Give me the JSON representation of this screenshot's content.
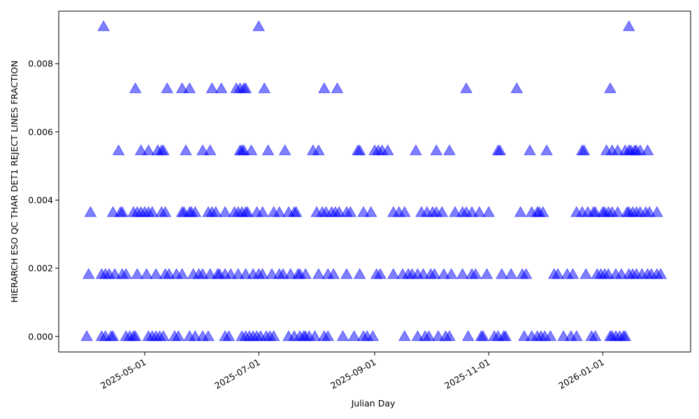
{
  "chart_data": {
    "type": "scatter",
    "x_label": "Julian Day",
    "y_label": "HIERARCH ESO QC THAR DET1 REJECT LINES FRACTION",
    "color": "#0000ff",
    "alpha": 0.5,
    "marker": "triangle",
    "xlim": [
      "2025-03-16",
      "2026-02-17"
    ],
    "xticks": [
      "2025-05-01",
      "2025-07-01",
      "2025-09-01",
      "2025-11-01",
      "2026-01-01"
    ],
    "ylim": [
      -0.000455,
      0.00954
    ],
    "yticks": [
      {
        "value": 0,
        "label": "0.000"
      },
      {
        "value": 0.002,
        "label": "0.002"
      },
      {
        "value": 0.004,
        "label": "0.004"
      },
      {
        "value": 0.006,
        "label": "0.006"
      },
      {
        "value": 0.008,
        "label": "0.008"
      }
    ],
    "x": [
      "2025-03-31",
      "2025-04-08",
      "2025-04-10",
      "2025-04-13",
      "2025-04-14",
      "2025-04-21",
      "2025-04-23",
      "2025-04-25",
      "2025-04-26",
      "2025-05-03",
      "2025-05-05",
      "2025-05-07",
      "2025-05-09",
      "2025-05-11",
      "2025-05-17",
      "2025-05-19",
      "2025-05-25",
      "2025-05-28",
      "2025-06-01",
      "2025-06-04",
      "2025-06-13",
      "2025-06-15",
      "2025-06-22",
      "2025-06-24",
      "2025-06-26",
      "2025-06-28",
      "2025-06-30",
      "2025-07-02",
      "2025-07-05",
      "2025-07-07",
      "2025-07-09",
      "2025-07-17",
      "2025-07-20",
      "2025-07-23",
      "2025-07-25",
      "2025-07-26",
      "2025-07-28",
      "2025-07-31",
      "2025-08-05",
      "2025-08-07",
      "2025-08-15",
      "2025-08-21",
      "2025-08-26",
      "2025-08-28",
      "2025-08-31",
      "2025-09-17",
      "2025-09-24",
      "2025-09-28",
      "2025-09-30",
      "2025-10-05",
      "2025-10-09",
      "2025-10-11",
      "2025-10-21",
      "2025-10-28",
      "2025-10-29",
      "2025-11-04",
      "2025-11-06",
      "2025-11-09",
      "2025-11-10",
      "2025-11-20",
      "2025-11-24",
      "2025-11-27",
      "2025-11-29",
      "2025-12-01",
      "2025-12-04",
      "2025-12-11",
      "2025-12-15",
      "2025-12-18",
      "2025-12-26",
      "2025-12-28",
      "2026-01-05",
      "2026-01-06",
      "2026-01-08",
      "2026-01-10",
      "2026-01-12",
      "2026-01-13",
      "2025-04-01",
      "2025-04-08",
      "2025-04-10",
      "2025-04-12",
      "2025-04-15",
      "2025-04-19",
      "2025-04-21",
      "2025-04-27",
      "2025-05-02",
      "2025-05-07",
      "2025-05-12",
      "2025-05-14",
      "2025-05-18",
      "2025-05-21",
      "2025-05-27",
      "2025-05-30",
      "2025-06-01",
      "2025-06-05",
      "2025-06-09",
      "2025-06-10",
      "2025-06-13",
      "2025-06-16",
      "2025-06-20",
      "2025-06-24",
      "2025-06-28",
      "2025-07-01",
      "2025-07-03",
      "2025-07-08",
      "2025-07-12",
      "2025-07-14",
      "2025-07-18",
      "2025-07-22",
      "2025-07-23",
      "2025-07-26",
      "2025-08-02",
      "2025-08-07",
      "2025-08-10",
      "2025-08-17",
      "2025-08-24",
      "2025-09-02",
      "2025-09-04",
      "2025-09-11",
      "2025-09-16",
      "2025-09-19",
      "2025-09-21",
      "2025-09-24",
      "2025-09-27",
      "2025-10-01",
      "2025-10-03",
      "2025-10-08",
      "2025-10-12",
      "2025-10-18",
      "2025-10-23",
      "2025-10-25",
      "2025-10-31",
      "2025-11-08",
      "2025-11-13",
      "2025-11-19",
      "2025-11-21",
      "2025-12-06",
      "2025-12-08",
      "2025-12-13",
      "2025-12-16",
      "2025-12-23",
      "2025-12-29",
      "2025-12-31",
      "2026-01-02",
      "2026-01-04",
      "2026-01-08",
      "2026-01-11",
      "2026-01-15",
      "2026-01-17",
      "2026-01-19",
      "2026-01-22",
      "2026-01-25",
      "2026-01-27",
      "2026-01-30",
      "2026-02-01",
      "2025-04-02",
      "2025-04-14",
      "2025-04-18",
      "2025-04-19",
      "2025-04-25",
      "2025-04-27",
      "2025-04-29",
      "2025-05-01",
      "2025-05-03",
      "2025-05-05",
      "2025-05-10",
      "2025-05-12",
      "2025-05-21",
      "2025-05-22",
      "2025-05-25",
      "2025-05-26",
      "2025-05-28",
      "2025-06-04",
      "2025-06-06",
      "2025-06-08",
      "2025-06-13",
      "2025-06-18",
      "2025-06-20",
      "2025-06-22",
      "2025-06-24",
      "2025-06-25",
      "2025-06-30",
      "2025-07-03",
      "2025-07-09",
      "2025-07-12",
      "2025-07-17",
      "2025-07-20",
      "2025-07-21",
      "2025-08-01",
      "2025-08-04",
      "2025-08-06",
      "2025-08-09",
      "2025-08-11",
      "2025-08-13",
      "2025-08-17",
      "2025-08-19",
      "2025-08-26",
      "2025-08-30",
      "2025-09-11",
      "2025-09-14",
      "2025-09-17",
      "2025-09-26",
      "2025-09-29",
      "2025-10-02",
      "2025-10-04",
      "2025-10-07",
      "2025-10-14",
      "2025-10-18",
      "2025-10-20",
      "2025-10-23",
      "2025-10-27",
      "2025-11-01",
      "2025-11-18",
      "2025-11-24",
      "2025-11-27",
      "2025-11-28",
      "2025-11-30",
      "2025-12-18",
      "2025-12-21",
      "2025-12-24",
      "2025-12-27",
      "2025-12-28",
      "2026-01-01",
      "2026-01-02",
      "2026-01-04",
      "2026-01-06",
      "2026-01-09",
      "2026-01-14",
      "2026-01-15",
      "2026-01-17",
      "2026-01-19",
      "2026-01-21",
      "2026-01-24",
      "2026-01-26",
      "2026-01-30",
      "2025-04-17",
      "2025-04-29",
      "2025-05-03",
      "2025-05-08",
      "2025-05-10",
      "2025-05-11",
      "2025-05-23",
      "2025-06-01",
      "2025-06-05",
      "2025-06-21",
      "2025-06-22",
      "2025-06-23",
      "2025-06-27",
      "2025-07-06",
      "2025-07-15",
      "2025-07-30",
      "2025-08-02",
      "2025-08-23",
      "2025-08-24",
      "2025-09-01",
      "2025-09-03",
      "2025-09-05",
      "2025-09-08",
      "2025-09-23",
      "2025-10-04",
      "2025-10-11",
      "2025-11-06",
      "2025-11-07",
      "2025-11-23",
      "2025-12-02",
      "2025-12-21",
      "2025-12-22",
      "2026-01-03",
      "2026-01-06",
      "2026-01-09",
      "2026-01-13",
      "2026-01-15",
      "2026-01-16",
      "2026-01-18",
      "2026-01-19",
      "2026-01-21",
      "2026-01-25",
      "2025-04-26",
      "2025-05-13",
      "2025-05-21",
      "2025-05-25",
      "2025-06-06",
      "2025-06-11",
      "2025-06-19",
      "2025-06-21",
      "2025-06-23",
      "2025-06-24",
      "2025-07-04",
      "2025-08-05",
      "2025-08-12",
      "2025-10-20",
      "2025-11-16",
      "2026-01-05",
      "2025-04-09",
      "2025-07-01",
      "2026-01-15"
    ],
    "values": [
      0,
      0,
      0,
      0,
      0,
      0,
      0,
      0,
      0,
      0,
      0,
      0,
      0,
      0,
      0,
      0,
      0,
      0,
      0,
      0,
      0,
      0,
      0,
      0,
      0,
      0,
      0,
      0,
      0,
      0,
      0,
      0,
      0,
      0,
      0,
      0,
      0,
      0,
      0,
      0,
      0,
      0,
      0,
      0,
      0,
      0,
      0,
      0,
      0,
      0,
      0,
      0,
      0,
      0,
      0,
      0,
      0,
      0,
      0,
      0,
      0,
      0,
      0,
      0,
      0,
      0,
      0,
      0,
      0,
      0,
      0,
      0,
      0,
      0,
      0,
      0,
      0.00182,
      0.00182,
      0.00182,
      0.00182,
      0.00182,
      0.00182,
      0.00182,
      0.00182,
      0.00182,
      0.00182,
      0.00182,
      0.00182,
      0.00182,
      0.00182,
      0.00182,
      0.00182,
      0.00182,
      0.00182,
      0.00182,
      0.00182,
      0.00182,
      0.00182,
      0.00182,
      0.00182,
      0.00182,
      0.00182,
      0.00182,
      0.00182,
      0.00182,
      0.00182,
      0.00182,
      0.00182,
      0.00182,
      0.00182,
      0.00182,
      0.00182,
      0.00182,
      0.00182,
      0.00182,
      0.00182,
      0.00182,
      0.00182,
      0.00182,
      0.00182,
      0.00182,
      0.00182,
      0.00182,
      0.00182,
      0.00182,
      0.00182,
      0.00182,
      0.00182,
      0.00182,
      0.00182,
      0.00182,
      0.00182,
      0.00182,
      0.00182,
      0.00182,
      0.00182,
      0.00182,
      0.00182,
      0.00182,
      0.00182,
      0.00182,
      0.00182,
      0.00182,
      0.00182,
      0.00182,
      0.00182,
      0.00182,
      0.00182,
      0.00182,
      0.00182,
      0.00182,
      0.00182,
      0.00182,
      0.00182,
      0.00364,
      0.00364,
      0.00364,
      0.00364,
      0.00364,
      0.00364,
      0.00364,
      0.00364,
      0.00364,
      0.00364,
      0.00364,
      0.00364,
      0.00364,
      0.00364,
      0.00364,
      0.00364,
      0.00364,
      0.00364,
      0.00364,
      0.00364,
      0.00364,
      0.00364,
      0.00364,
      0.00364,
      0.00364,
      0.00364,
      0.00364,
      0.00364,
      0.00364,
      0.00364,
      0.00364,
      0.00364,
      0.00364,
      0.00364,
      0.00364,
      0.00364,
      0.00364,
      0.00364,
      0.00364,
      0.00364,
      0.00364,
      0.00364,
      0.00364,
      0.00364,
      0.00364,
      0.00364,
      0.00364,
      0.00364,
      0.00364,
      0.00364,
      0.00364,
      0.00364,
      0.00364,
      0.00364,
      0.00364,
      0.00364,
      0.00364,
      0.00364,
      0.00364,
      0.00364,
      0.00364,
      0.00364,
      0.00364,
      0.00364,
      0.00364,
      0.00364,
      0.00364,
      0.00364,
      0.00364,
      0.00364,
      0.00364,
      0.00364,
      0.00364,
      0.00364,
      0.00364,
      0.00364,
      0.00364,
      0.00364,
      0.00364,
      0.00364,
      0.00545,
      0.00545,
      0.00545,
      0.00545,
      0.00545,
      0.00545,
      0.00545,
      0.00545,
      0.00545,
      0.00545,
      0.00545,
      0.00545,
      0.00545,
      0.00545,
      0.00545,
      0.00545,
      0.00545,
      0.00545,
      0.00545,
      0.00545,
      0.00545,
      0.00545,
      0.00545,
      0.00545,
      0.00545,
      0.00545,
      0.00545,
      0.00545,
      0.00545,
      0.00545,
      0.00545,
      0.00545,
      0.00545,
      0.00545,
      0.00545,
      0.00545,
      0.00545,
      0.00545,
      0.00545,
      0.00545,
      0.00545,
      0.00545,
      0.00727,
      0.00727,
      0.00727,
      0.00727,
      0.00727,
      0.00727,
      0.00727,
      0.00727,
      0.00727,
      0.00727,
      0.00727,
      0.00727,
      0.00727,
      0.00727,
      0.00727,
      0.00727,
      0.00909,
      0.00909,
      0.00909
    ]
  }
}
